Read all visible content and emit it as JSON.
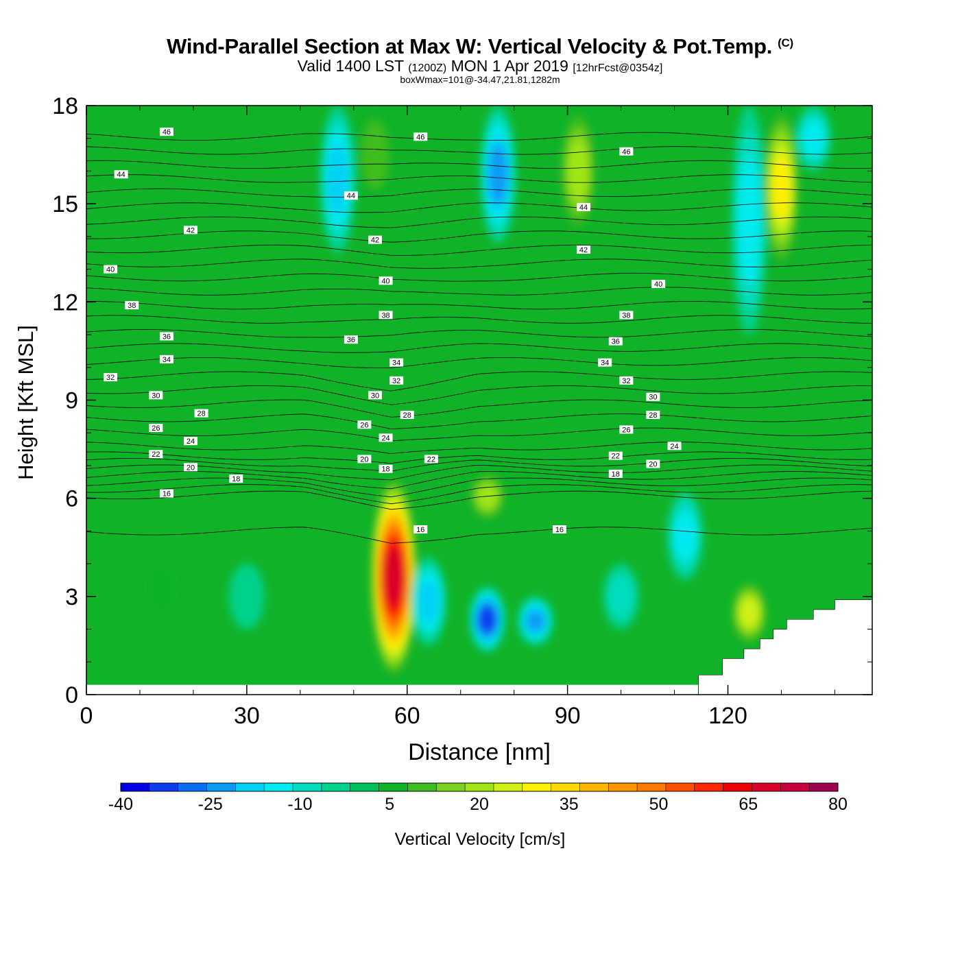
{
  "title": {
    "main": "Wind-Parallel Section at Max W: Vertical Velocity & Pot.Temp.",
    "copyright": "(C)",
    "valid_prefix": "Valid 1400 LST",
    "valid_utc": "(1200Z)",
    "valid_date": "MON 1 Apr 2019",
    "forecast": "[12hrFcst@0354z]",
    "box_wmax": "boxWmax=101@-34.47,21.81,1282m"
  },
  "chart_data": {
    "type": "heatmap",
    "title": "Wind-Parallel Section at Max W: Vertical Velocity & Pot.Temp.",
    "xlabel": "Distance [nm]",
    "ylabel": "Height [Kft MSL]",
    "xlim": [
      0,
      147
    ],
    "ylim": [
      0,
      18
    ],
    "x_ticks": [
      "0",
      "30",
      "60",
      "90",
      "120"
    ],
    "y_ticks": [
      "0",
      "3",
      "6",
      "9",
      "12",
      "15",
      "18"
    ],
    "colorbar": {
      "label": "Vertical Velocity [cm/s]",
      "tick_labels": [
        "-40",
        "-25",
        "-10",
        "5",
        "20",
        "35",
        "50",
        "65",
        "80"
      ],
      "levels": [
        -40,
        -35,
        -30,
        -25,
        -20,
        -15,
        -10,
        -5,
        0,
        5,
        10,
        15,
        20,
        25,
        30,
        35,
        40,
        45,
        50,
        55,
        60,
        65,
        70,
        75,
        80
      ],
      "colors": [
        "#0000e6",
        "#0a3df0",
        "#0a6ef5",
        "#0a9bf5",
        "#00d2f5",
        "#00ebf0",
        "#00ddc0",
        "#00d28c",
        "#00c35a",
        "#10b328",
        "#3cbe1e",
        "#78d21e",
        "#a0e614",
        "#d2f014",
        "#fff000",
        "#ffd700",
        "#ffb400",
        "#ff9600",
        "#ff7800",
        "#ff5000",
        "#ff2800",
        "#f00000",
        "#dc0028",
        "#c8003c",
        "#a00050"
      ]
    },
    "w_max_cm_s": 101,
    "w_max_location": {
      "lat": -34.47,
      "lon": 21.81,
      "height_m": 1282
    },
    "w_cells": [
      {
        "x": 57.5,
        "zlo": 0.5,
        "zhi": 6.7,
        "value": 70
      },
      {
        "x": 75,
        "zlo": 1.3,
        "zhi": 3.3,
        "value": -35
      },
      {
        "x": 84,
        "zlo": 1.5,
        "zhi": 3.0,
        "value": -25
      },
      {
        "x": 64,
        "zlo": 1.5,
        "zhi": 4.2,
        "value": -20
      },
      {
        "x": 47,
        "zlo": 13.5,
        "zhi": 18,
        "value": -20
      },
      {
        "x": 77,
        "zlo": 13.8,
        "zhi": 18,
        "value": -25
      },
      {
        "x": 112,
        "zlo": 3.5,
        "zhi": 6.2,
        "value": -15
      },
      {
        "x": 124,
        "zlo": 11,
        "zhi": 18,
        "value": -15
      },
      {
        "x": 136,
        "zlo": 16,
        "zhi": 18,
        "value": -15
      },
      {
        "x": 130,
        "zlo": 13,
        "zhi": 18,
        "value": 30
      },
      {
        "x": 124,
        "zlo": 1.5,
        "zhi": 3.5,
        "value": 25
      },
      {
        "x": 92,
        "zlo": 14,
        "zhi": 18,
        "value": 20
      },
      {
        "x": 75,
        "zlo": 5.3,
        "zhi": 6.8,
        "value": 20
      },
      {
        "x": 54,
        "zlo": 15,
        "zhi": 18,
        "value": 12
      },
      {
        "x": 14,
        "zlo": 2.3,
        "zhi": 4.2,
        "value": 8
      },
      {
        "x": 100,
        "zlo": 2,
        "zhi": 4,
        "value": -10
      },
      {
        "x": 30,
        "zlo": 2,
        "zhi": 4,
        "value": -8
      }
    ],
    "theta_contours": {
      "units": "deg C",
      "interval": 1,
      "range": [
        16,
        46
      ],
      "labeled_levels": [
        {
          "label": "46",
          "x": 15,
          "z": 17.2
        },
        {
          "label": "46",
          "x": 62.5,
          "z": 17.05
        },
        {
          "label": "46",
          "x": 101,
          "z": 16.6
        },
        {
          "label": "44",
          "x": 6.5,
          "z": 15.9
        },
        {
          "label": "44",
          "x": 49.5,
          "z": 15.25
        },
        {
          "label": "44",
          "x": 93,
          "z": 14.9
        },
        {
          "label": "42",
          "x": 19.5,
          "z": 14.2
        },
        {
          "label": "42",
          "x": 54,
          "z": 13.9
        },
        {
          "label": "42",
          "x": 93,
          "z": 13.6
        },
        {
          "label": "40",
          "x": 4.5,
          "z": 13.0
        },
        {
          "label": "40",
          "x": 56,
          "z": 12.65
        },
        {
          "label": "40",
          "x": 107,
          "z": 12.55
        },
        {
          "label": "38",
          "x": 8.5,
          "z": 11.9
        },
        {
          "label": "38",
          "x": 56,
          "z": 11.6
        },
        {
          "label": "38",
          "x": 101,
          "z": 11.6
        },
        {
          "label": "36",
          "x": 15,
          "z": 10.95
        },
        {
          "label": "36",
          "x": 49.5,
          "z": 10.85
        },
        {
          "label": "36",
          "x": 99,
          "z": 10.8
        },
        {
          "label": "34",
          "x": 15,
          "z": 10.25
        },
        {
          "label": "34",
          "x": 58,
          "z": 10.15
        },
        {
          "label": "34",
          "x": 97,
          "z": 10.15
        },
        {
          "label": "32",
          "x": 4.5,
          "z": 9.7
        },
        {
          "label": "32",
          "x": 58,
          "z": 9.6
        },
        {
          "label": "32",
          "x": 101,
          "z": 9.6
        },
        {
          "label": "30",
          "x": 13,
          "z": 9.15
        },
        {
          "label": "30",
          "x": 54,
          "z": 9.15
        },
        {
          "label": "30",
          "x": 106,
          "z": 9.1
        },
        {
          "label": "28",
          "x": 21.5,
          "z": 8.6
        },
        {
          "label": "28",
          "x": 60,
          "z": 8.55
        },
        {
          "label": "28",
          "x": 106,
          "z": 8.55
        },
        {
          "label": "26",
          "x": 13,
          "z": 8.15
        },
        {
          "label": "26",
          "x": 52,
          "z": 8.25
        },
        {
          "label": "26",
          "x": 101,
          "z": 8.1
        },
        {
          "label": "24",
          "x": 19.5,
          "z": 7.75
        },
        {
          "label": "24",
          "x": 56,
          "z": 7.85
        },
        {
          "label": "24",
          "x": 110,
          "z": 7.6
        },
        {
          "label": "22",
          "x": 13,
          "z": 7.35
        },
        {
          "label": "22",
          "x": 64.5,
          "z": 7.2
        },
        {
          "label": "22",
          "x": 99,
          "z": 7.3
        },
        {
          "label": "20",
          "x": 19.5,
          "z": 6.95
        },
        {
          "label": "20",
          "x": 52,
          "z": 7.2
        },
        {
          "label": "20",
          "x": 106,
          "z": 7.05
        },
        {
          "label": "18",
          "x": 28,
          "z": 6.6
        },
        {
          "label": "18",
          "x": 56,
          "z": 6.9
        },
        {
          "label": "18",
          "x": 99,
          "z": 6.75
        },
        {
          "label": "16",
          "x": 15,
          "z": 6.15
        },
        {
          "label": "16",
          "x": 62.5,
          "z": 5.05
        },
        {
          "label": "16",
          "x": 88.5,
          "z": 5.05
        }
      ]
    },
    "terrain_steps": [
      {
        "x": 114.5,
        "z": 0.6
      },
      {
        "x": 119,
        "z": 1.1
      },
      {
        "x": 123,
        "z": 1.4
      },
      {
        "x": 126,
        "z": 1.7
      },
      {
        "x": 128.5,
        "z": 2.0
      },
      {
        "x": 131,
        "z": 2.3
      },
      {
        "x": 136,
        "z": 2.6
      },
      {
        "x": 140,
        "z": 2.9
      },
      {
        "x": 147,
        "z": 2.9
      }
    ]
  }
}
